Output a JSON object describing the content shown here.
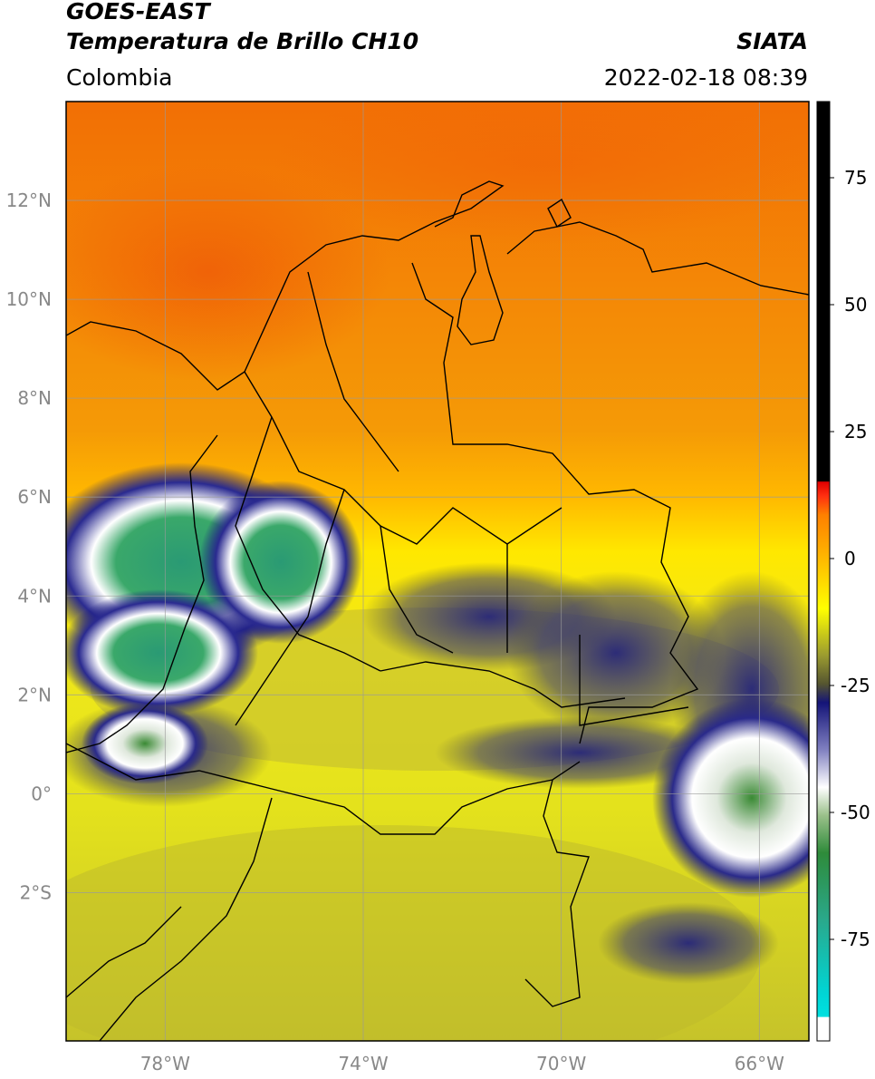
{
  "header": {
    "satellite": "GOES-EAST",
    "product": "Temperatura de Brillo CH10",
    "brand": "SIATA",
    "region": "Colombia",
    "datetime": "2022-02-18 08:39"
  },
  "map": {
    "lat_labels": [
      "12°N",
      "10°N",
      "8°N",
      "6°N",
      "4°N",
      "2°N",
      "0°",
      "2°S"
    ],
    "lon_labels": [
      "78°W",
      "74°W",
      "70°W",
      "66°W"
    ],
    "lon_range": [
      -80,
      -65
    ],
    "lat_range": [
      -5,
      14
    ]
  },
  "colorbar": {
    "ticks": [
      "75",
      "50",
      "25",
      "0",
      "-25",
      "-50",
      "-75"
    ],
    "range": [
      -95,
      90
    ],
    "colors": {
      "black": "#000000",
      "red": "#e8170f",
      "orange": "#ff8c00",
      "yellow": "#ffff00",
      "olive": "#c8c326",
      "navy": "#141478",
      "white": "#ffffff",
      "green": "#2e8b3a",
      "teal": "#2aa88a",
      "cyan": "#00e5e5"
    }
  }
}
